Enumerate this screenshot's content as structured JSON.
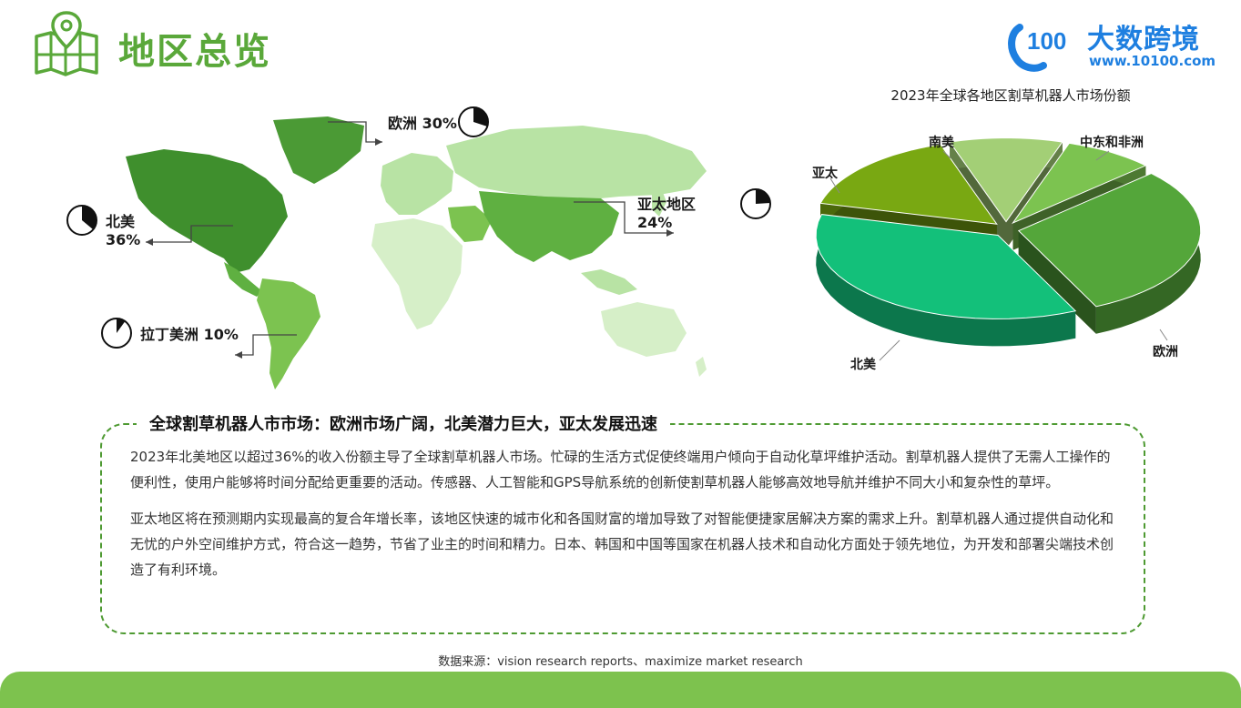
{
  "header": {
    "title": "地区总览",
    "logo_name": "大数跨境",
    "logo_url": "www.10100.com",
    "logo_mark": "100"
  },
  "map": {
    "north_america": {
      "name": "北美",
      "value": "36%"
    },
    "europe": {
      "label": "欧洲 30%"
    },
    "asia_pacific": {
      "name": "亚太地区",
      "value": "24%"
    },
    "latin_america": {
      "label": "拉丁美洲 10%"
    },
    "shares": {
      "north_america": 0.36,
      "europe": 0.3,
      "asia_pacific": 0.24,
      "latin_america": 0.1
    },
    "colors": {
      "highlight_dark": "#3f8f2d",
      "highlight_mid": "#5fb041",
      "land_light": "#b8e3a4",
      "land_lighter": "#d6efc8"
    }
  },
  "chart_data": {
    "type": "pie",
    "title": "2023年全球各地区割草机器人市场份额",
    "categories": [
      "南美",
      "中东和非洲",
      "欧洲",
      "北美",
      "亚太"
    ],
    "values": [
      10,
      8,
      30,
      36,
      16
    ],
    "colors": [
      "#a3cf76",
      "#7cc350",
      "#54a63a",
      "#13c07a",
      "#79a812"
    ]
  },
  "solo_pie": {
    "value": 0.24
  },
  "summary": {
    "title": "全球割草机器人市市场：欧洲市场广阔，北美潜力巨大，亚太发展迅速",
    "paragraph1": "2023年北美地区以超过36%的收入份额主导了全球割草机器人市场。忙碌的生活方式促使终端用户倾向于自动化草坪维护活动。割草机器人提供了无需人工操作的便利性，使用户能够将时间分配给更重要的活动。传感器、人工智能和GPS导航系统的创新使割草机器人能够高效地导航并维护不同大小和复杂性的草坪。",
    "paragraph2": "亚太地区将在预测期内实现最高的复合年增长率，该地区快速的城市化和各国财富的增加导致了对智能便捷家居解决方案的需求上升。割草机器人通过提供自动化和无忧的户外空间维护方式，符合这一趋势，节省了业主的时间和精力。日本、韩国和中国等国家在机器人技术和自动化方面处于领先地位，为开发和部署尖端技术创造了有利环境。"
  },
  "source": "数据来源：vision research reports、maximize market research"
}
